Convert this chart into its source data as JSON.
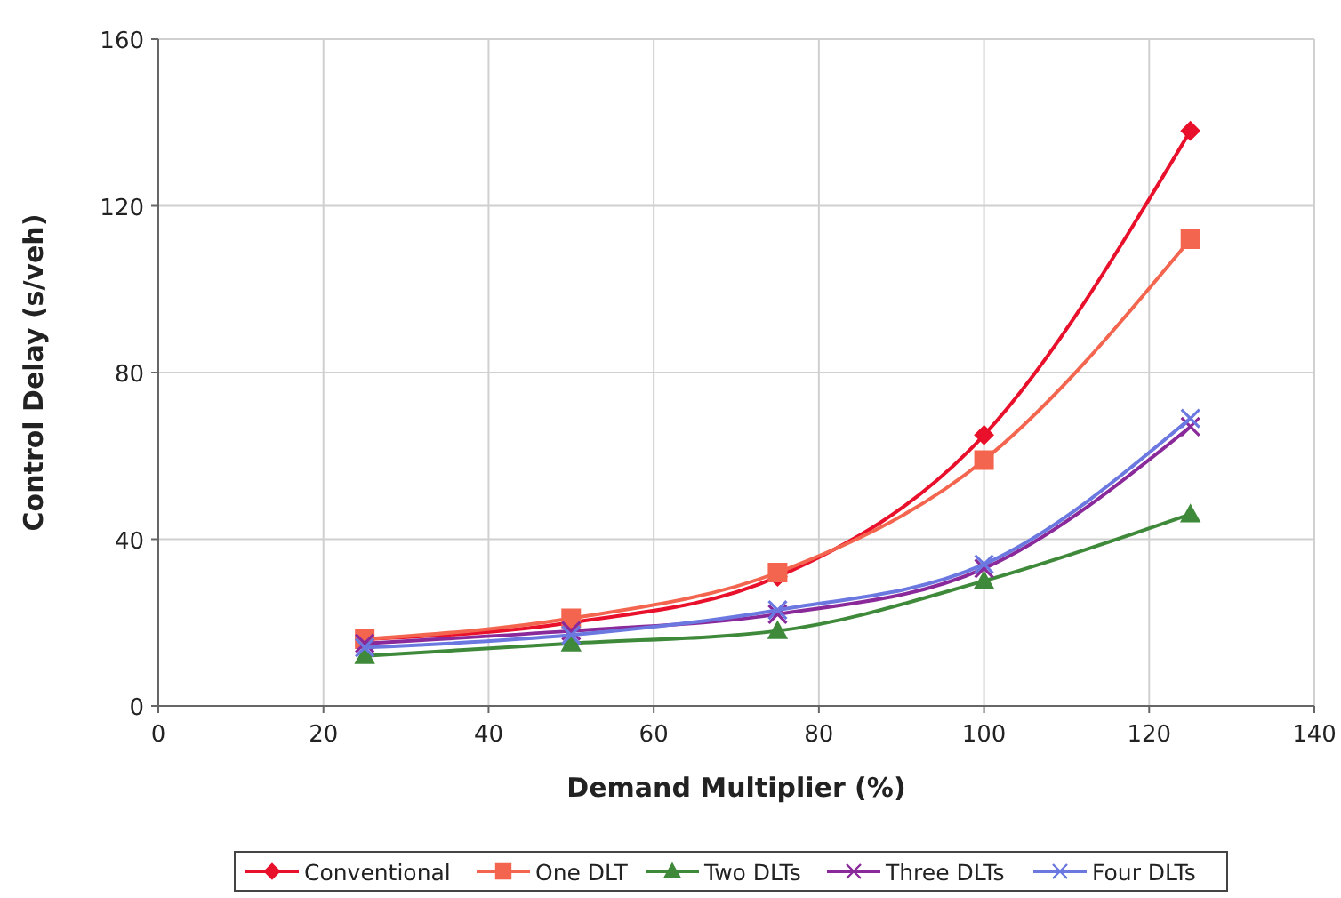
{
  "chart_data": {
    "type": "line",
    "xlabel": "Demand Multiplier (%)",
    "ylabel": "Control Delay (s/veh)",
    "x": [
      25,
      50,
      75,
      100,
      125
    ],
    "series": [
      {
        "name": "Conventional",
        "color": "#e8102a",
        "marker": "diamond",
        "values": [
          16,
          20,
          31,
          65,
          138
        ]
      },
      {
        "name": "One DLT",
        "color": "#f4654f",
        "marker": "square",
        "values": [
          16,
          21,
          32,
          59,
          112
        ]
      },
      {
        "name": "Two DLTs",
        "color": "#3f8a3a",
        "marker": "triangle",
        "values": [
          12,
          15,
          18,
          30,
          46
        ]
      },
      {
        "name": "Three DLTs",
        "color": "#8a2a9a",
        "marker": "cross",
        "values": [
          15,
          18,
          22,
          33,
          67
        ]
      },
      {
        "name": "Four DLTs",
        "color": "#6a78e0",
        "marker": "cross",
        "values": [
          14,
          17,
          23,
          34,
          69
        ]
      }
    ],
    "xlim": [
      0,
      140
    ],
    "xticks": [
      0,
      20,
      40,
      60,
      80,
      100,
      120,
      140
    ],
    "ylim": [
      0,
      160
    ],
    "yticks": [
      0,
      40,
      80,
      120,
      160
    ],
    "grid": true,
    "legend": "bottom",
    "line_style": "solid"
  }
}
